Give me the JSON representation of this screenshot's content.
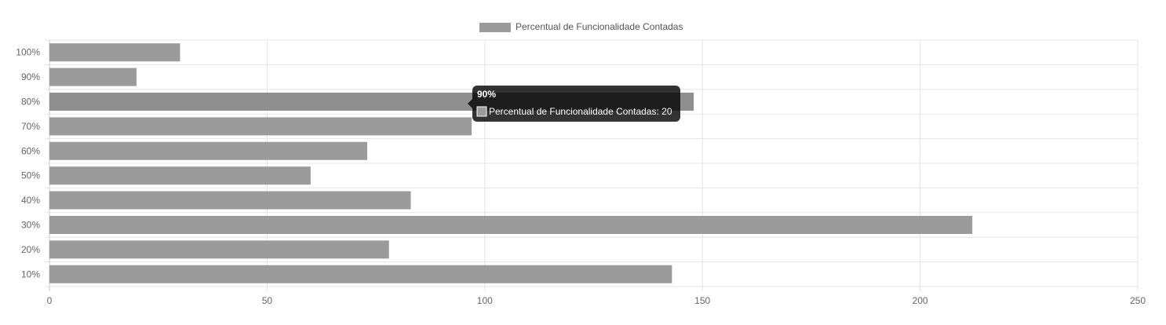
{
  "chart_data": {
    "type": "bar",
    "orientation": "horizontal",
    "title": "",
    "xlabel": "",
    "ylabel": "",
    "categories": [
      "100%",
      "90%",
      "80%",
      "70%",
      "60%",
      "50%",
      "40%",
      "30%",
      "20%",
      "10%"
    ],
    "series": [
      {
        "name": "Percentual de Funcionalidade Contadas",
        "values": [
          30,
          20,
          148,
          97,
          73,
          60,
          83,
          212,
          78,
          143
        ],
        "color": "#9b9b9b"
      }
    ],
    "xlim": [
      0,
      250
    ],
    "x_ticks": [
      "0",
      "50",
      "100",
      "150",
      "200",
      "250"
    ],
    "grid": true,
    "legend_position": "top-center",
    "hovered_index": 2,
    "hover_color": "#8f8f8f",
    "tooltip": {
      "title": "90%",
      "body": "Percentual de Funcionalidade Contadas: 20"
    }
  },
  "colors": {
    "grid": "#e5e5e5",
    "axis": "#c9c9c9",
    "tick_text": "#666666",
    "legend_text": "#555555",
    "tooltip_bg": "#000000",
    "tooltip_text": "#ffffff"
  }
}
